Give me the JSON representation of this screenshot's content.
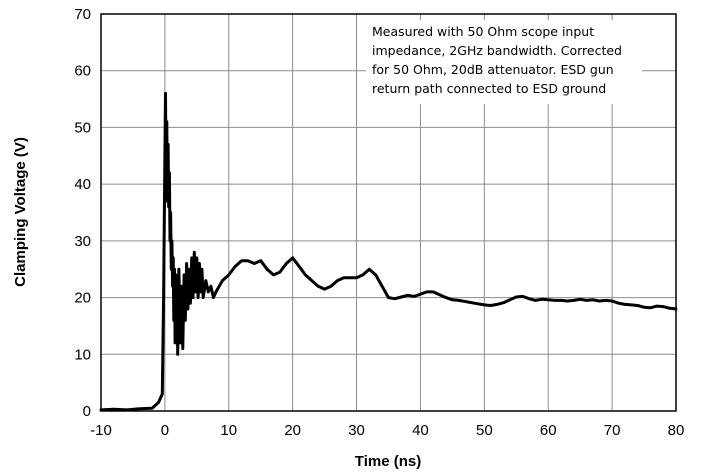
{
  "chart_data": {
    "type": "line",
    "title": "",
    "xlabel": "Time (ns)",
    "ylabel": "Clamping Voltage (V)",
    "xlim": [
      -10,
      80
    ],
    "ylim": [
      0,
      70
    ],
    "x_ticks": [
      "-10",
      "0",
      "10",
      "20",
      "30",
      "40",
      "50",
      "60",
      "70",
      "80"
    ],
    "y_ticks": [
      "0",
      "10",
      "20",
      "30",
      "40",
      "50",
      "60",
      "70"
    ],
    "grid": true,
    "legend": "none",
    "line_color": "#000000",
    "annotation": [
      "Measured with 50 Ohm scope input",
      "impedance, 2GHz bandwidth. Corrected",
      "for 50 Ohm, 20dB attenuator. ESD gun",
      "return path connected to ESD ground"
    ],
    "series": [
      {
        "x": [
          -10,
          -8,
          -6,
          -4,
          -2,
          -1,
          -0.4,
          -0.2,
          0,
          0.1,
          0.2,
          0.3,
          0.4,
          0.5,
          0.6,
          0.7,
          0.8,
          0.9,
          1.0,
          1.1,
          1.2,
          1.3,
          1.4,
          1.5,
          1.6,
          1.7,
          1.8,
          1.9,
          2.0,
          2.2,
          2.4,
          2.6,
          2.8,
          3.0,
          3.2,
          3.4,
          3.6,
          3.8,
          4.0,
          4.2,
          4.4,
          4.6,
          4.8,
          5.0,
          5.2,
          5.4,
          5.6,
          5.8,
          6.0,
          6.4,
          6.8,
          7.2,
          7.6,
          8,
          8.5,
          9,
          10,
          11,
          12,
          13,
          14,
          15,
          16,
          17,
          18,
          19,
          20,
          21,
          22,
          23,
          24,
          25,
          26,
          27,
          28,
          29,
          30,
          31,
          32,
          33,
          34,
          35,
          36,
          37,
          38,
          39,
          40,
          41,
          42,
          43,
          44,
          45,
          46,
          47,
          48,
          49,
          50,
          51,
          52,
          53,
          54,
          55,
          56,
          57,
          58,
          59,
          60,
          61,
          62,
          63,
          64,
          65,
          66,
          67,
          68,
          69,
          70,
          71,
          72,
          73,
          74,
          75,
          76,
          77,
          78,
          79,
          80
        ],
        "y": [
          0.2,
          0.3,
          0.2,
          0.4,
          0.5,
          1.5,
          3,
          20,
          45,
          56,
          38,
          51,
          37,
          47,
          36,
          42,
          30,
          35,
          25,
          30,
          22,
          27,
          16,
          25,
          12,
          24,
          14,
          22,
          10,
          25,
          12,
          22,
          11,
          24,
          16,
          26,
          18,
          25,
          19,
          27,
          20,
          28,
          21,
          27,
          20,
          26,
          21,
          25,
          20,
          23,
          21,
          22,
          20,
          21,
          22,
          23,
          24,
          25.5,
          26.5,
          26.5,
          26,
          26.5,
          25,
          24,
          24.5,
          26,
          27,
          25.5,
          24,
          23,
          22,
          21.5,
          22,
          23,
          23.5,
          23.5,
          23.5,
          24,
          25,
          24,
          22,
          20,
          19.8,
          20.1,
          20.4,
          20.2,
          20.6,
          21,
          21,
          20.5,
          20,
          19.6,
          19.5,
          19.3,
          19.1,
          18.9,
          18.7,
          18.6,
          18.8,
          19.1,
          19.6,
          20.1,
          20.2,
          19.8,
          19.5,
          19.7,
          19.6,
          19.5,
          19.5,
          19.4,
          19.5,
          19.7,
          19.5,
          19.6,
          19.4,
          19.5,
          19.4,
          19.0,
          18.8,
          18.7,
          18.6,
          18.3,
          18.2,
          18.5,
          18.4,
          18.1,
          18.0
        ]
      }
    ]
  }
}
